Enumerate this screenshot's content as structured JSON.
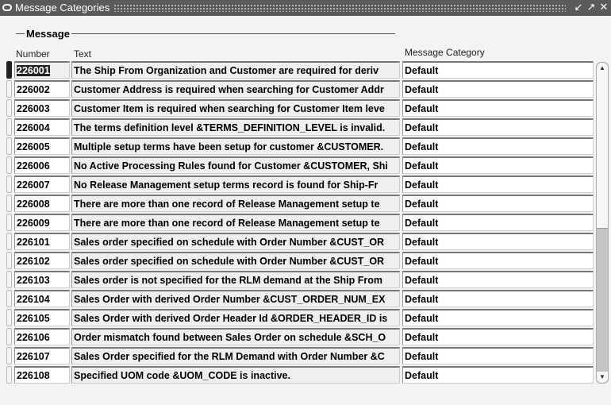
{
  "window": {
    "title": "Message Categories",
    "controls": [
      "minimize",
      "maximize",
      "close"
    ]
  },
  "group_label": "Message",
  "headers": {
    "number": "Number",
    "text": "Text",
    "category": "Message Category"
  },
  "rows": [
    {
      "number": "226001",
      "text": "The Ship From Organization and Customer are required for deriv",
      "category": "Default"
    },
    {
      "number": "226002",
      "text": "Customer Address is required when searching for Customer Addr",
      "category": "Default"
    },
    {
      "number": "226003",
      "text": "Customer Item is required when searching for Customer Item leve",
      "category": "Default"
    },
    {
      "number": "226004",
      "text": "The terms definition level &TERMS_DEFINITION_LEVEL is invalid.",
      "category": "Default"
    },
    {
      "number": "226005",
      "text": "Multiple setup terms have been setup for customer &CUSTOMER.",
      "category": "Default"
    },
    {
      "number": "226006",
      "text": "No Active Processing Rules found for Customer &CUSTOMER, Shi",
      "category": "Default"
    },
    {
      "number": "226007",
      "text": "No Release Management setup terms record is found for  Ship-Fr",
      "category": "Default"
    },
    {
      "number": "226008",
      "text": "There are more than one record of Release Management setup te",
      "category": "Default"
    },
    {
      "number": "226009",
      "text": "There are more than one record of Release Management setup te",
      "category": "Default"
    },
    {
      "number": "226101",
      "text": "Sales order specified on schedule with Order Number &CUST_OR",
      "category": "Default"
    },
    {
      "number": "226102",
      "text": "Sales order specified on schedule with Order Number &CUST_OR",
      "category": "Default"
    },
    {
      "number": "226103",
      "text": "Sales order is not specified for the RLM demand at the Ship From",
      "category": "Default"
    },
    {
      "number": "226104",
      "text": "Sales Order with derived Order Number &CUST_ORDER_NUM_EX",
      "category": "Default"
    },
    {
      "number": "226105",
      "text": "Sales Order with derived Order Header Id &ORDER_HEADER_ID is",
      "category": "Default"
    },
    {
      "number": "226106",
      "text": "Order mismatch found between Sales Order on schedule &SCH_O",
      "category": "Default"
    },
    {
      "number": "226107",
      "text": "Sales Order specified for the RLM Demand with Order Number &C",
      "category": "Default"
    },
    {
      "number": "226108",
      "text": "Specified UOM code &UOM_CODE is inactive.",
      "category": "Default"
    }
  ],
  "current_row": 0
}
